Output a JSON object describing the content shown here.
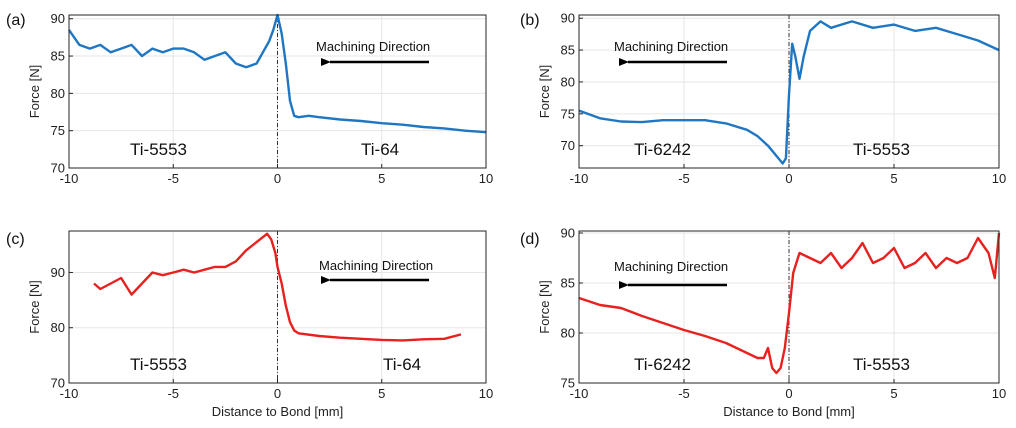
{
  "chart_data": [
    {
      "type": "line",
      "panel_label": "(a)",
      "xlabel": "",
      "ylabel": "Force [N]",
      "xlim": [
        -10,
        10
      ],
      "ylim": [
        70,
        90.5
      ],
      "xticks": [
        -10,
        -5,
        0,
        5,
        10
      ],
      "yticks": [
        70,
        75,
        80,
        85,
        90
      ],
      "grid": true,
      "color": "#1f77c4",
      "direction_text": "Machining Direction",
      "arrow": "left",
      "left_region": "Ti-5553",
      "right_region": "Ti-64",
      "x": [
        -10,
        -9.5,
        -9,
        -8.5,
        -8,
        -7.5,
        -7,
        -6.5,
        -6,
        -5.5,
        -5,
        -4.5,
        -4,
        -3.5,
        -3,
        -2.5,
        -2,
        -1.5,
        -1,
        -0.7,
        -0.4,
        -0.2,
        0,
        0.2,
        0.4,
        0.6,
        0.8,
        1,
        1.5,
        2,
        3,
        4,
        5,
        6,
        7,
        8,
        9,
        10
      ],
      "y": [
        88.5,
        86.5,
        86,
        86.5,
        85.5,
        86,
        86.5,
        85,
        86,
        85.5,
        86,
        86,
        85.5,
        84.5,
        85,
        85.5,
        84,
        83.5,
        84,
        85.5,
        87,
        88.5,
        90.5,
        88,
        84,
        79,
        77,
        76.8,
        77,
        76.8,
        76.5,
        76.3,
        76,
        75.8,
        75.5,
        75.3,
        75,
        74.8
      ]
    },
    {
      "type": "line",
      "panel_label": "(b)",
      "xlabel": "",
      "ylabel": "Force [N]",
      "xlim": [
        -10,
        10
      ],
      "ylim": [
        66.5,
        90.5
      ],
      "xticks": [
        -10,
        -5,
        0,
        5,
        10
      ],
      "yticks": [
        70,
        75,
        80,
        85,
        90
      ],
      "grid": true,
      "color": "#1f77c4",
      "direction_text": "Machining Direction",
      "arrow": "left",
      "left_region": "Ti-6242",
      "right_region": "Ti-5553",
      "x": [
        -10,
        -9,
        -8,
        -7,
        -6,
        -5,
        -4,
        -3,
        -2,
        -1.5,
        -1,
        -0.7,
        -0.5,
        -0.3,
        -0.15,
        0,
        0.15,
        0.3,
        0.5,
        0.7,
        1,
        1.5,
        2,
        3,
        4,
        5,
        6,
        7,
        8,
        9,
        10
      ],
      "y": [
        75.5,
        74.3,
        73.8,
        73.7,
        74,
        74,
        74,
        73.5,
        72.5,
        71.5,
        70,
        68.8,
        68,
        67.2,
        68,
        78,
        86,
        84,
        80.5,
        84,
        88,
        89.5,
        88.5,
        89.5,
        88.5,
        89,
        88,
        88.5,
        87.5,
        86.5,
        85
      ]
    },
    {
      "type": "line",
      "panel_label": "(c)",
      "xlabel": "Distance to Bond [mm]",
      "ylabel": "Force [N]",
      "xlim": [
        -10,
        10
      ],
      "ylim": [
        70,
        97.5
      ],
      "xticks": [
        -10,
        -5,
        0,
        5,
        10
      ],
      "yticks": [
        70,
        80,
        90
      ],
      "grid": true,
      "color": "#e8211f",
      "direction_text": "Machining Direction",
      "arrow": "left",
      "left_region": "Ti-5553",
      "right_region": "Ti-64",
      "x": [
        -8.8,
        -8.5,
        -8,
        -7.5,
        -7,
        -6.5,
        -6,
        -5.5,
        -5,
        -4.5,
        -4,
        -3.5,
        -3,
        -2.5,
        -2,
        -1.5,
        -1,
        -0.5,
        -0.3,
        -0.1,
        0,
        0.2,
        0.4,
        0.6,
        0.8,
        1,
        2,
        3,
        4,
        5,
        6,
        7,
        8,
        8.8
      ],
      "y": [
        88,
        87,
        88,
        89,
        86,
        88,
        90,
        89.5,
        90,
        90.5,
        90,
        90.5,
        91,
        91,
        92,
        94,
        95.5,
        97,
        96,
        93.5,
        91,
        88,
        84,
        81,
        79.5,
        79,
        78.5,
        78.2,
        78,
        77.8,
        77.7,
        77.9,
        78,
        78.8
      ]
    },
    {
      "type": "line",
      "panel_label": "(d)",
      "xlabel": "Distance to Bond [mm]",
      "ylabel": "Force [N]",
      "xlim": [
        -10,
        10
      ],
      "ylim": [
        75,
        90.2
      ],
      "xticks": [
        -10,
        -5,
        0,
        5,
        10
      ],
      "yticks": [
        75,
        80,
        85,
        90
      ],
      "grid": true,
      "color": "#e8211f",
      "direction_text": "Machining Direction",
      "arrow": "left",
      "left_region": "Ti-6242",
      "right_region": "Ti-5553",
      "x": [
        -10,
        -9,
        -8,
        -7,
        -6,
        -5,
        -4,
        -3,
        -2,
        -1.5,
        -1.2,
        -1,
        -0.8,
        -0.6,
        -0.4,
        -0.2,
        0,
        0.2,
        0.5,
        1,
        1.5,
        2,
        2.5,
        3,
        3.5,
        4,
        4.5,
        5,
        5.5,
        6,
        6.5,
        7,
        7.5,
        8,
        8.5,
        9,
        9.5,
        9.8,
        10
      ],
      "y": [
        83.5,
        82.8,
        82.5,
        81.7,
        81,
        80.3,
        79.7,
        79,
        78,
        77.5,
        77.5,
        78.5,
        76.5,
        76,
        76.5,
        78.5,
        82,
        86,
        88,
        87.5,
        87,
        88,
        86.5,
        87.5,
        89,
        87,
        87.5,
        88.5,
        86.5,
        87,
        88,
        86.5,
        87.5,
        87,
        87.5,
        89.5,
        88,
        85.5,
        90
      ]
    }
  ]
}
